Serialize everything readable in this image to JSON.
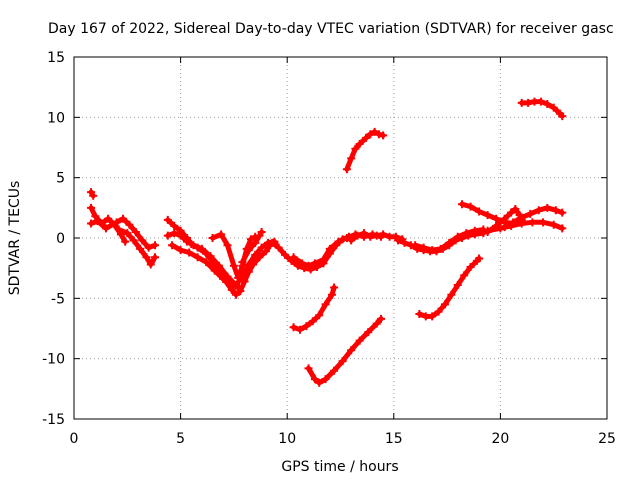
{
  "chart_data": {
    "type": "scatter",
    "title": "Day 167 of 2022, Sidereal Day-to-day VTEC variation (SDTVAR) for receiver gasc",
    "xlabel": "GPS time / hours",
    "ylabel": "SDTVAR / TECUs",
    "xlim": [
      0,
      25
    ],
    "ylim": [
      -15,
      15
    ],
    "xticks": [
      0,
      5,
      10,
      15,
      20,
      25
    ],
    "yticks": [
      -15,
      -10,
      -5,
      0,
      5,
      10,
      15
    ],
    "grid": true,
    "marker_color": "#ff0000",
    "series": [
      {
        "name": "s1",
        "points": [
          [
            0.8,
            3.8
          ],
          [
            0.9,
            3.5
          ]
        ]
      },
      {
        "name": "s2",
        "points": [
          [
            0.8,
            2.5
          ],
          [
            1.0,
            1.8
          ],
          [
            1.3,
            1.2
          ],
          [
            1.6,
            1.6
          ],
          [
            1.9,
            1.1
          ],
          [
            2.2,
            0.3
          ],
          [
            2.4,
            -0.3
          ]
        ]
      },
      {
        "name": "s3",
        "points": [
          [
            0.8,
            1.2
          ],
          [
            1.1,
            1.4
          ],
          [
            1.5,
            0.8
          ],
          [
            2.0,
            1.3
          ],
          [
            2.3,
            1.6
          ],
          [
            2.6,
            1.1
          ],
          [
            2.9,
            0.5
          ],
          [
            3.2,
            -0.2
          ],
          [
            3.5,
            -0.8
          ],
          [
            3.8,
            -0.6
          ]
        ]
      },
      {
        "name": "s4",
        "points": [
          [
            2.1,
            0.7
          ],
          [
            2.5,
            0.4
          ],
          [
            2.8,
            -0.2
          ],
          [
            3.1,
            -0.9
          ],
          [
            3.4,
            -1.6
          ],
          [
            3.6,
            -2.2
          ],
          [
            3.8,
            -1.6
          ]
        ]
      },
      {
        "name": "s5",
        "points": [
          [
            4.4,
            1.5
          ],
          [
            4.7,
            1.0
          ],
          [
            5.0,
            0.6
          ],
          [
            5.3,
            0.0
          ],
          [
            5.5,
            -0.5
          ],
          [
            5.8,
            -0.8
          ],
          [
            6.2,
            -1.3
          ],
          [
            6.6,
            -2.2
          ],
          [
            7.0,
            -3.3
          ],
          [
            7.4,
            -4.3
          ],
          [
            7.6,
            -4.7
          ],
          [
            7.8,
            -4.4
          ],
          [
            8.0,
            -3.6
          ],
          [
            8.2,
            -2.8
          ],
          [
            8.4,
            -2.2
          ],
          [
            8.7,
            -1.6
          ],
          [
            9.0,
            -1.1
          ],
          [
            9.2,
            -0.6
          ],
          [
            9.4,
            -0.4
          ]
        ]
      },
      {
        "name": "s6",
        "points": [
          [
            4.4,
            0.2
          ],
          [
            4.7,
            0.4
          ],
          [
            5.0,
            0.2
          ],
          [
            5.3,
            -0.3
          ],
          [
            5.6,
            -0.6
          ],
          [
            6.0,
            -0.9
          ],
          [
            6.4,
            -1.5
          ],
          [
            6.8,
            -2.3
          ],
          [
            7.2,
            -3.2
          ],
          [
            7.6,
            -3.9
          ],
          [
            7.9,
            -3.2
          ],
          [
            8.2,
            -2.2
          ],
          [
            8.5,
            -1.4
          ],
          [
            8.8,
            -0.8
          ],
          [
            9.1,
            -0.4
          ],
          [
            9.4,
            -0.3
          ]
        ]
      },
      {
        "name": "s7",
        "points": [
          [
            4.6,
            -0.6
          ],
          [
            5.0,
            -1.0
          ],
          [
            5.4,
            -1.2
          ],
          [
            5.8,
            -1.6
          ],
          [
            6.2,
            -2.0
          ],
          [
            6.6,
            -2.7
          ],
          [
            7.0,
            -3.4
          ],
          [
            7.4,
            -3.9
          ],
          [
            7.7,
            -4.1
          ]
        ]
      },
      {
        "name": "s8",
        "points": [
          [
            6.5,
            0.0
          ],
          [
            6.9,
            0.3
          ],
          [
            7.2,
            -0.6
          ],
          [
            7.5,
            -2.3
          ],
          [
            7.7,
            -3.3
          ],
          [
            7.9,
            -2.3
          ],
          [
            8.1,
            -0.9
          ],
          [
            8.3,
            -0.1
          ],
          [
            8.5,
            0.1
          ]
        ]
      },
      {
        "name": "s9",
        "points": [
          [
            7.9,
            -2.0
          ],
          [
            8.2,
            -1.0
          ],
          [
            8.5,
            -0.4
          ],
          [
            8.7,
            0.2
          ],
          [
            8.8,
            0.5
          ]
        ]
      },
      {
        "name": "s10",
        "points": [
          [
            9.3,
            -0.4
          ],
          [
            9.6,
            -0.8
          ],
          [
            9.9,
            -1.4
          ],
          [
            10.2,
            -1.9
          ],
          [
            10.5,
            -2.3
          ],
          [
            10.8,
            -2.5
          ],
          [
            11.1,
            -2.6
          ],
          [
            11.4,
            -2.4
          ],
          [
            11.7,
            -2.1
          ],
          [
            12.0,
            -1.3
          ],
          [
            12.3,
            -0.6
          ],
          [
            12.6,
            -0.1
          ],
          [
            12.9,
            0.1
          ],
          [
            13.2,
            0.2
          ]
        ]
      },
      {
        "name": "s11",
        "points": [
          [
            10.3,
            -1.6
          ],
          [
            10.7,
            -2.1
          ],
          [
            11.0,
            -2.3
          ],
          [
            11.3,
            -2.1
          ],
          [
            11.7,
            -1.8
          ],
          [
            12.0,
            -0.9
          ],
          [
            12.4,
            -0.3
          ],
          [
            12.8,
            0.0
          ],
          [
            13.2,
            0.3
          ],
          [
            13.6,
            0.1
          ],
          [
            14.0,
            0.3
          ],
          [
            14.4,
            0.1
          ]
        ]
      },
      {
        "name": "s12",
        "points": [
          [
            13.0,
            -0.2
          ],
          [
            13.3,
            0.2
          ],
          [
            13.6,
            0.4
          ],
          [
            13.9,
            0.1
          ],
          [
            14.2,
            0.2
          ],
          [
            14.5,
            0.3
          ],
          [
            14.8,
            0.1
          ],
          [
            15.1,
            0.1
          ],
          [
            15.4,
            -0.1
          ]
        ]
      },
      {
        "name": "s13",
        "points": [
          [
            12.8,
            5.7
          ],
          [
            13.0,
            6.6
          ],
          [
            13.2,
            7.4
          ],
          [
            13.4,
            7.8
          ],
          [
            13.7,
            8.3
          ],
          [
            13.9,
            8.6
          ],
          [
            14.1,
            8.8
          ],
          [
            14.3,
            8.6
          ],
          [
            14.5,
            8.5
          ]
        ]
      },
      {
        "name": "s14",
        "points": [
          [
            10.3,
            -7.4
          ],
          [
            10.6,
            -7.6
          ],
          [
            10.9,
            -7.3
          ],
          [
            11.2,
            -6.9
          ],
          [
            11.5,
            -6.4
          ],
          [
            11.8,
            -5.5
          ],
          [
            12.1,
            -4.7
          ],
          [
            12.2,
            -4.1
          ]
        ]
      },
      {
        "name": "s15",
        "points": [
          [
            11.0,
            -10.8
          ],
          [
            11.3,
            -11.7
          ],
          [
            11.5,
            -12.0
          ],
          [
            11.8,
            -11.7
          ],
          [
            12.2,
            -11.0
          ],
          [
            12.6,
            -10.2
          ],
          [
            13.0,
            -9.3
          ],
          [
            13.4,
            -8.5
          ],
          [
            13.8,
            -7.8
          ],
          [
            14.2,
            -7.1
          ],
          [
            14.4,
            -6.7
          ]
        ]
      },
      {
        "name": "s16",
        "points": [
          [
            15.2,
            -0.2
          ],
          [
            15.5,
            -0.4
          ],
          [
            15.8,
            -0.6
          ],
          [
            16.1,
            -0.9
          ],
          [
            16.4,
            -1.0
          ],
          [
            16.7,
            -1.1
          ],
          [
            17.0,
            -1.1
          ],
          [
            17.3,
            -0.9
          ],
          [
            17.6,
            -0.6
          ],
          [
            17.9,
            -0.2
          ],
          [
            18.2,
            0.0
          ],
          [
            18.5,
            0.2
          ],
          [
            18.8,
            0.3
          ],
          [
            19.2,
            0.4
          ]
        ]
      },
      {
        "name": "s17",
        "points": [
          [
            16.0,
            -0.6
          ],
          [
            16.4,
            -0.8
          ],
          [
            16.8,
            -1.0
          ],
          [
            17.2,
            -0.9
          ],
          [
            17.6,
            -0.4
          ],
          [
            18.0,
            0.1
          ],
          [
            18.4,
            0.4
          ],
          [
            18.8,
            0.6
          ],
          [
            19.2,
            0.7
          ]
        ]
      },
      {
        "name": "s18",
        "points": [
          [
            16.2,
            -6.3
          ],
          [
            16.5,
            -6.5
          ],
          [
            16.8,
            -6.5
          ],
          [
            17.1,
            -6.1
          ],
          [
            17.4,
            -5.5
          ],
          [
            17.7,
            -4.7
          ],
          [
            18.0,
            -3.9
          ],
          [
            18.3,
            -3.1
          ],
          [
            18.6,
            -2.4
          ],
          [
            18.9,
            -1.9
          ],
          [
            19.0,
            -1.7
          ]
        ]
      },
      {
        "name": "s19",
        "points": [
          [
            18.2,
            2.8
          ],
          [
            18.6,
            2.6
          ],
          [
            19.0,
            2.2
          ],
          [
            19.4,
            1.9
          ],
          [
            19.8,
            1.6
          ],
          [
            20.2,
            1.3
          ],
          [
            20.6,
            1.2
          ],
          [
            21.0,
            1.5
          ]
        ]
      },
      {
        "name": "s20",
        "points": [
          [
            18.8,
            0.4
          ],
          [
            19.4,
            0.6
          ],
          [
            20.0,
            0.8
          ],
          [
            20.5,
            1.0
          ],
          [
            21.0,
            1.2
          ],
          [
            21.5,
            1.3
          ],
          [
            22.0,
            1.3
          ],
          [
            22.5,
            1.1
          ],
          [
            22.9,
            0.8
          ]
        ]
      },
      {
        "name": "s21",
        "points": [
          [
            19.4,
            0.5
          ],
          [
            19.8,
            1.0
          ],
          [
            20.2,
            1.6
          ],
          [
            20.5,
            2.1
          ],
          [
            20.7,
            2.4
          ],
          [
            20.9,
            1.9
          ]
        ]
      },
      {
        "name": "s22",
        "points": [
          [
            20.2,
            0.9
          ],
          [
            20.6,
            1.3
          ],
          [
            21.0,
            1.7
          ],
          [
            21.4,
            2.0
          ],
          [
            21.8,
            2.3
          ],
          [
            22.2,
            2.5
          ],
          [
            22.6,
            2.3
          ],
          [
            22.9,
            2.1
          ]
        ]
      },
      {
        "name": "s23",
        "points": [
          [
            21.0,
            11.2
          ],
          [
            21.3,
            11.2
          ],
          [
            21.6,
            11.3
          ],
          [
            21.9,
            11.3
          ],
          [
            22.2,
            11.1
          ],
          [
            22.5,
            10.8
          ],
          [
            22.8,
            10.3
          ],
          [
            22.9,
            10.1
          ]
        ]
      }
    ]
  }
}
